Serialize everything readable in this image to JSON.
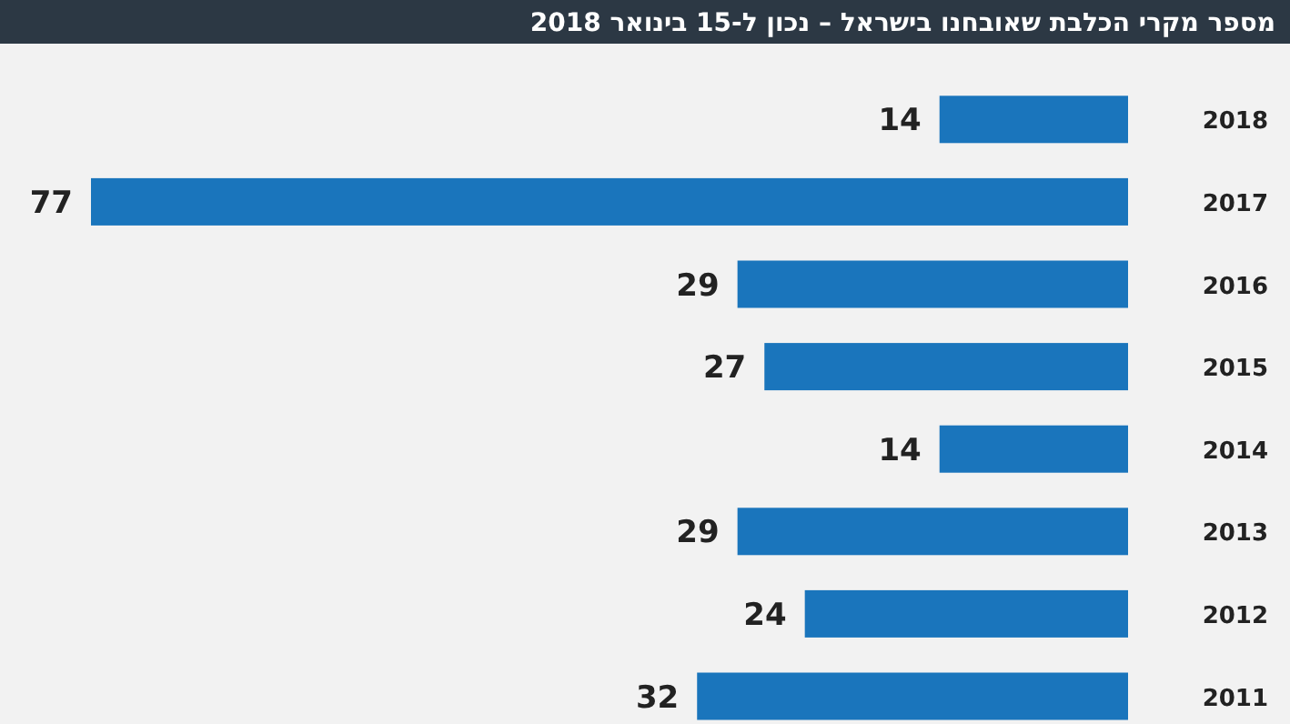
{
  "chart_data": {
    "type": "bar",
    "orientation": "horizontal",
    "title": "מספר מקרי הכלבת שאובחנו בישראל – נכון ל-15 בינואר 2018",
    "categories": [
      "2018",
      "2017",
      "2016",
      "2015",
      "2014",
      "2013",
      "2012",
      "2011"
    ],
    "values": [
      14,
      77,
      29,
      27,
      14,
      29,
      24,
      32
    ],
    "color": "#1a75bc",
    "data_labels": true
  }
}
